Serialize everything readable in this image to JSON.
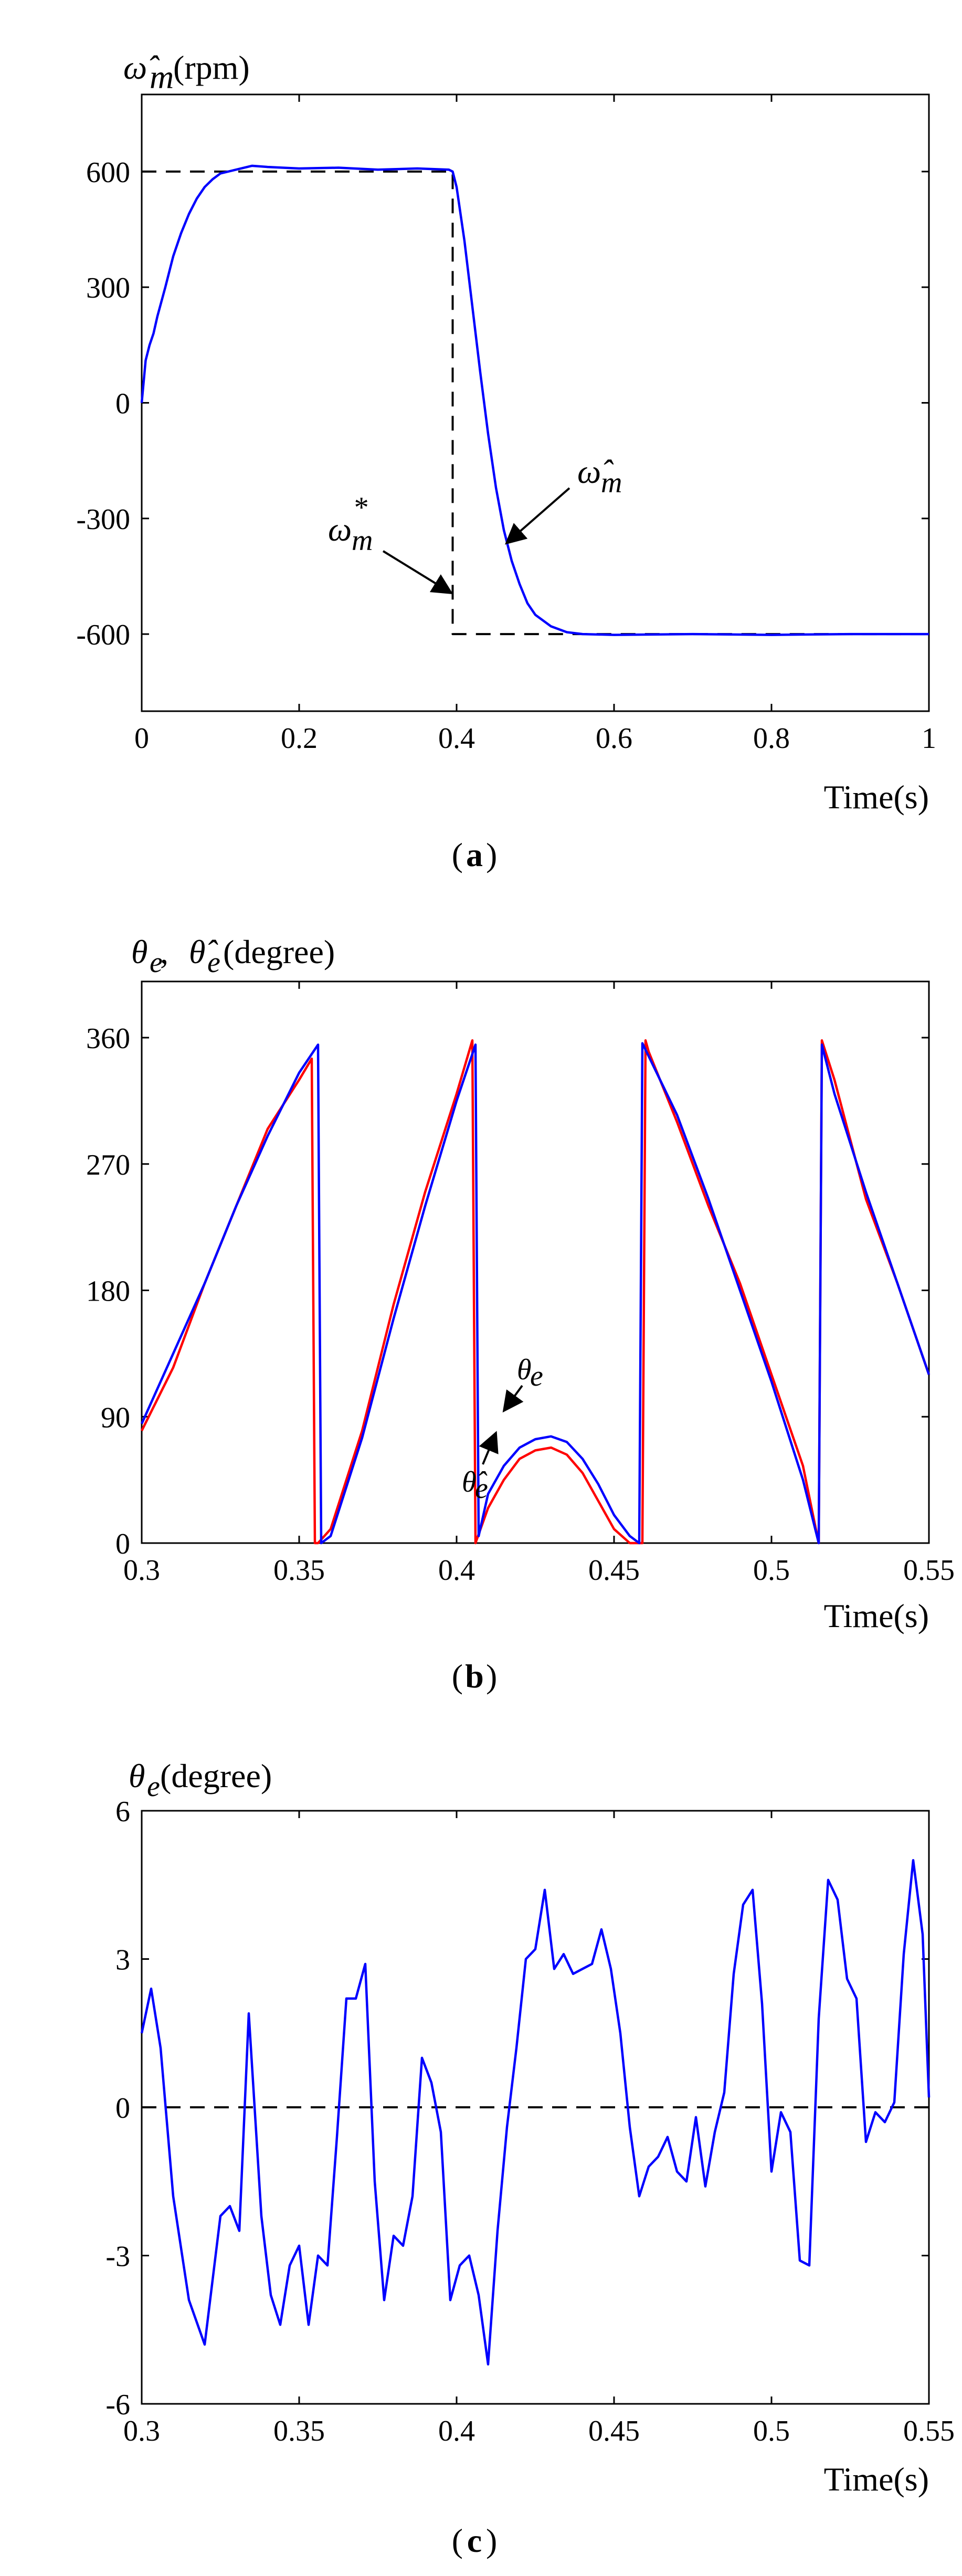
{
  "chart_data": [
    {
      "type": "line",
      "panel_label": "a",
      "ylabel_symbol": "ω̂",
      "ylabel_sub": "m",
      "ylabel_unit": "(rpm)",
      "xlabel": "Time(s)",
      "xlim": [
        0,
        1
      ],
      "ylim": [
        -800,
        800
      ],
      "xticks": [
        0,
        0.2,
        0.4,
        0.6,
        0.8,
        1
      ],
      "yticks": [
        -600,
        -300,
        0,
        300,
        600
      ],
      "xtick_labels": [
        "0",
        "0.2",
        "0.4",
        "0.6",
        "0.8",
        "1"
      ],
      "ytick_labels": [
        "-600",
        "-300",
        "0",
        "300",
        "600"
      ],
      "series": [
        {
          "role": "reference",
          "color": "#000000",
          "dash": true,
          "x": [
            0,
            0.395,
            0.395,
            1
          ],
          "y": [
            600,
            600,
            -600,
            -600
          ]
        },
        {
          "role": "estimate",
          "color": "#0000ff",
          "x": [
            0,
            0.005,
            0.01,
            0.015,
            0.02,
            0.03,
            0.04,
            0.05,
            0.06,
            0.07,
            0.08,
            0.09,
            0.1,
            0.12,
            0.14,
            0.16,
            0.2,
            0.25,
            0.3,
            0.35,
            0.39,
            0.395,
            0.4,
            0.41,
            0.42,
            0.43,
            0.44,
            0.45,
            0.46,
            0.47,
            0.48,
            0.49,
            0.5,
            0.52,
            0.54,
            0.56,
            0.6,
            0.7,
            0.8,
            0.9,
            1.0
          ],
          "y": [
            0,
            110,
            150,
            180,
            225,
            300,
            380,
            440,
            490,
            530,
            560,
            580,
            595,
            605,
            615,
            612,
            608,
            610,
            605,
            608,
            605,
            600,
            560,
            420,
            250,
            80,
            -80,
            -220,
            -330,
            -410,
            -470,
            -520,
            -550,
            -580,
            -595,
            -600,
            -602,
            -600,
            -602,
            -600,
            -600
          ]
        }
      ],
      "annotations": [
        {
          "text_symbol": "ω",
          "sub": "m",
          "sup": "*",
          "arrow_to": [
            0.39,
            -520
          ]
        },
        {
          "text_symbol": "ω̂",
          "sub": "m",
          "arrow_to": [
            0.465,
            -400
          ]
        }
      ]
    },
    {
      "type": "line",
      "panel_label": "b",
      "ylabel_text": "θe , θ̂e",
      "ylabel_parts": {
        "s1": "θ",
        "sub1": "e",
        "sep": " , ",
        "s2": "θ̂",
        "sub2": "e",
        "unit": "(degree)"
      },
      "xlabel": "Time(s)",
      "xlim": [
        0.3,
        0.55
      ],
      "ylim": [
        0,
        400
      ],
      "xticks": [
        0.3,
        0.35,
        0.4,
        0.45,
        0.5,
        0.55
      ],
      "yticks": [
        0,
        90,
        180,
        270,
        360
      ],
      "xtick_labels": [
        "0.3",
        "0.35",
        "0.4",
        "0.45",
        "0.5",
        "0.55"
      ],
      "ytick_labels": [
        "0",
        "90",
        "180",
        "270",
        "360"
      ],
      "series": [
        {
          "role": "estimate",
          "color": "#ff0000",
          "x": [
            0.3,
            0.31,
            0.32,
            0.33,
            0.34,
            0.35,
            0.354,
            0.355,
            0.356,
            0.36,
            0.37,
            0.38,
            0.39,
            0.4,
            0.405,
            0.406,
            0.41,
            0.415,
            0.42,
            0.425,
            0.43,
            0.435,
            0.44,
            0.445,
            0.45,
            0.455,
            0.459,
            0.46,
            0.461,
            0.47,
            0.48,
            0.49,
            0.5,
            0.51,
            0.515,
            0.516,
            0.52,
            0.53,
            0.54,
            0.55
          ],
          "y": [
            80,
            125,
            185,
            240,
            295,
            330,
            345,
            0,
            0,
            10,
            80,
            170,
            250,
            320,
            358,
            0,
            25,
            45,
            60,
            66,
            68,
            63,
            50,
            30,
            10,
            0,
            0,
            358,
            350,
            300,
            240,
            185,
            120,
            55,
            0,
            358,
            330,
            245,
            185,
            120
          ]
        },
        {
          "role": "actual",
          "color": "#0000ff",
          "x": [
            0.3,
            0.31,
            0.32,
            0.33,
            0.34,
            0.35,
            0.356,
            0.357,
            0.36,
            0.37,
            0.38,
            0.39,
            0.4,
            0.406,
            0.407,
            0.41,
            0.415,
            0.42,
            0.425,
            0.43,
            0.435,
            0.44,
            0.445,
            0.45,
            0.455,
            0.458,
            0.459,
            0.47,
            0.48,
            0.49,
            0.5,
            0.51,
            0.515,
            0.516,
            0.52,
            0.53,
            0.54,
            0.55
          ],
          "y": [
            85,
            135,
            185,
            240,
            290,
            335,
            355,
            0,
            5,
            75,
            160,
            240,
            315,
            355,
            5,
            35,
            55,
            68,
            74,
            76,
            72,
            60,
            42,
            20,
            5,
            0,
            356,
            305,
            245,
            180,
            115,
            45,
            0,
            355,
            320,
            250,
            185,
            120
          ]
        }
      ],
      "annotations": [
        {
          "text_symbol": "θ",
          "sub": "e",
          "arrow_to": [
            0.43,
            76
          ]
        },
        {
          "text_symbol": "θ̂",
          "sub": "e",
          "arrow_to": [
            0.43,
            66
          ]
        }
      ]
    },
    {
      "type": "line",
      "panel_label": "c",
      "ylabel_symbol": "θ",
      "ylabel_sub": "e",
      "ylabel_unit": "(degree)",
      "xlabel": "Time(s)",
      "xlim": [
        0.3,
        0.55
      ],
      "ylim": [
        -6,
        6
      ],
      "xticks": [
        0.3,
        0.35,
        0.4,
        0.45,
        0.5,
        0.55
      ],
      "yticks": [
        -6,
        -3,
        0,
        3,
        6
      ],
      "xtick_labels": [
        "0.3",
        "0.35",
        "0.4",
        "0.45",
        "0.5",
        "0.55"
      ],
      "ytick_labels": [
        "-6",
        "-3",
        "0",
        "3",
        "6"
      ],
      "series": [
        {
          "role": "reference",
          "color": "#000000",
          "dash": true,
          "x": [
            0.3,
            0.55
          ],
          "y": [
            0,
            0
          ]
        },
        {
          "role": "error",
          "color": "#0000ff",
          "x": [
            0.3,
            0.303,
            0.306,
            0.31,
            0.315,
            0.32,
            0.325,
            0.328,
            0.331,
            0.334,
            0.338,
            0.341,
            0.344,
            0.347,
            0.35,
            0.353,
            0.356,
            0.359,
            0.362,
            0.365,
            0.368,
            0.371,
            0.374,
            0.377,
            0.38,
            0.383,
            0.386,
            0.389,
            0.392,
            0.395,
            0.398,
            0.401,
            0.404,
            0.407,
            0.41,
            0.413,
            0.416,
            0.419,
            0.422,
            0.425,
            0.428,
            0.431,
            0.434,
            0.437,
            0.44,
            0.443,
            0.446,
            0.449,
            0.452,
            0.455,
            0.458,
            0.461,
            0.464,
            0.467,
            0.47,
            0.473,
            0.476,
            0.479,
            0.482,
            0.485,
            0.488,
            0.491,
            0.494,
            0.497,
            0.5,
            0.503,
            0.506,
            0.509,
            0.512,
            0.515,
            0.518,
            0.521,
            0.524,
            0.527,
            0.53,
            0.533,
            0.536,
            0.539,
            0.542,
            0.545,
            0.548,
            0.55
          ],
          "y": [
            1.5,
            2.4,
            1.2,
            -1.8,
            -3.9,
            -4.8,
            -2.2,
            -2.0,
            -2.5,
            1.9,
            -2.2,
            -3.8,
            -4.4,
            -3.2,
            -2.8,
            -4.4,
            -3.0,
            -3.2,
            -0.6,
            2.2,
            2.2,
            2.9,
            -1.5,
            -3.9,
            -2.6,
            -2.8,
            -1.8,
            1.0,
            0.5,
            -0.5,
            -3.9,
            -3.2,
            -3.0,
            -3.8,
            -5.2,
            -2.5,
            -0.4,
            1.2,
            3.0,
            3.2,
            4.4,
            2.8,
            3.1,
            2.7,
            2.8,
            2.9,
            3.6,
            2.8,
            1.5,
            -0.4,
            -1.8,
            -1.2,
            -1.0,
            -0.6,
            -1.3,
            -1.5,
            -0.2,
            -1.6,
            -0.5,
            0.3,
            2.7,
            4.1,
            4.4,
            2.1,
            -1.3,
            -0.1,
            -0.5,
            -3.1,
            -3.2,
            1.8,
            4.6,
            4.2,
            2.6,
            2.2,
            -0.7,
            -0.1,
            -0.3,
            0.1,
            3.1,
            5.0,
            3.5,
            0.2
          ]
        }
      ]
    }
  ]
}
